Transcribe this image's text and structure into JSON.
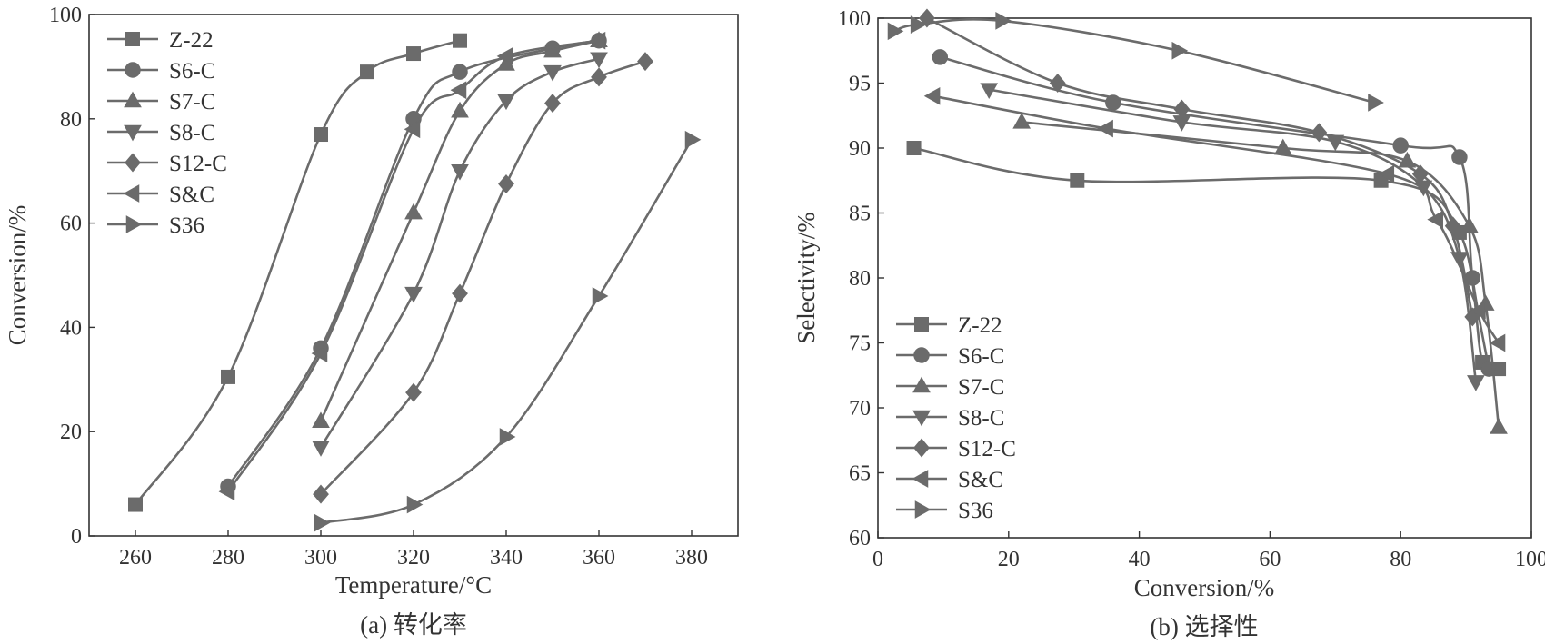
{
  "colors": {
    "series": "#6b6b6b",
    "axis": "#333333"
  },
  "chart_data": [
    {
      "type": "line",
      "title": "",
      "caption": "(a) 转化率",
      "xlabel": "Temperature/°C",
      "ylabel": "Conversion/%",
      "xlim": [
        250,
        390
      ],
      "ylim": [
        0,
        100
      ],
      "xticks": [
        260,
        280,
        300,
        320,
        340,
        360,
        380
      ],
      "yticks": [
        0,
        20,
        40,
        60,
        80,
        100
      ],
      "legend_position": "top-left",
      "series": [
        {
          "name": "Z-22",
          "marker": "square",
          "x": [
            260,
            280,
            300,
            310,
            320,
            330
          ],
          "y": [
            6,
            30.5,
            77,
            89,
            92.5,
            95
          ]
        },
        {
          "name": "S6-C",
          "marker": "circle",
          "x": [
            280,
            300,
            320,
            330,
            350,
            360
          ],
          "y": [
            9.5,
            36,
            80,
            89,
            93.5,
            95
          ]
        },
        {
          "name": "S7-C",
          "marker": "triangle-up",
          "x": [
            300,
            320,
            330,
            340,
            350,
            360
          ],
          "y": [
            22,
            62,
            81.5,
            90.5,
            93,
            95
          ]
        },
        {
          "name": "S8-C",
          "marker": "triangle-down",
          "x": [
            300,
            320,
            330,
            340,
            350,
            360
          ],
          "y": [
            17,
            46.5,
            70,
            83.5,
            89,
            91.5
          ]
        },
        {
          "name": "S12-C",
          "marker": "diamond",
          "x": [
            300,
            320,
            330,
            340,
            350,
            360,
            370
          ],
          "y": [
            8,
            27.5,
            46.5,
            67.5,
            83,
            88,
            91
          ]
        },
        {
          "name": "S&C",
          "marker": "triangle-left",
          "x": [
            280,
            300,
            320,
            330,
            340,
            360
          ],
          "y": [
            8.5,
            35,
            78,
            85.5,
            92,
            95
          ]
        },
        {
          "name": "S36",
          "marker": "triangle-right",
          "x": [
            300,
            320,
            340,
            360,
            380
          ],
          "y": [
            2.5,
            6,
            19,
            46,
            76
          ]
        }
      ]
    },
    {
      "type": "line",
      "title": "",
      "caption": "(b) 选择性",
      "xlabel": "Conversion/%",
      "ylabel": "Selectivity/%",
      "xlim": [
        0,
        100
      ],
      "ylim": [
        60,
        100
      ],
      "xticks": [
        0,
        20,
        40,
        60,
        80,
        100
      ],
      "yticks": [
        60,
        65,
        70,
        75,
        80,
        85,
        90,
        95,
        100
      ],
      "legend_position": "bottom-left",
      "series": [
        {
          "name": "Z-22",
          "marker": "square",
          "x": [
            5.5,
            30.5,
            77,
            89,
            92.5,
            95
          ],
          "y": [
            90,
            87.5,
            87.5,
            83.5,
            73.5,
            73
          ]
        },
        {
          "name": "S6-C",
          "marker": "circle",
          "x": [
            9.5,
            36,
            80,
            89,
            91,
            93.5
          ],
          "y": [
            97,
            93.5,
            90.2,
            89.3,
            80,
            73
          ]
        },
        {
          "name": "S7-C",
          "marker": "triangle-up",
          "x": [
            22,
            62,
            81,
            90.5,
            93,
            95
          ],
          "y": [
            92,
            90,
            89,
            84,
            78,
            68.5
          ]
        },
        {
          "name": "S8-C",
          "marker": "triangle-down",
          "x": [
            17,
            46.5,
            70,
            83.5,
            89,
            91.5
          ],
          "y": [
            94.5,
            92,
            90.5,
            87,
            81.5,
            72
          ]
        },
        {
          "name": "S12-C",
          "marker": "diamond",
          "x": [
            7.5,
            27.5,
            46.5,
            67.5,
            83,
            88,
            91
          ],
          "y": [
            100,
            95,
            93,
            91.2,
            88,
            84,
            77
          ]
        },
        {
          "name": "S&C",
          "marker": "triangle-left",
          "x": [
            8.5,
            35,
            78,
            85.5,
            92,
            95
          ],
          "y": [
            94,
            91.5,
            88,
            84.5,
            77.5,
            75
          ]
        },
        {
          "name": "S36",
          "marker": "triangle-right",
          "x": [
            2.5,
            6,
            19,
            46,
            76
          ],
          "y": [
            99,
            99.5,
            99.8,
            97.5,
            93.5
          ]
        }
      ]
    }
  ]
}
